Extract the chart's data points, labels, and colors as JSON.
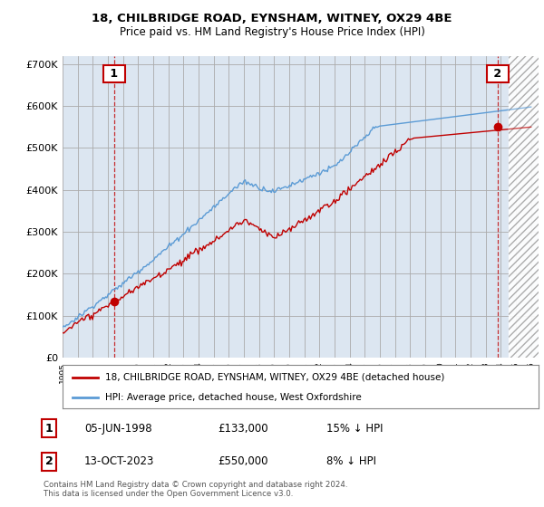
{
  "title_line1": "18, CHILBRIDGE ROAD, EYNSHAM, WITNEY, OX29 4BE",
  "title_line2": "Price paid vs. HM Land Registry's House Price Index (HPI)",
  "ylim": [
    0,
    720000
  ],
  "yticks": [
    0,
    100000,
    200000,
    300000,
    400000,
    500000,
    600000,
    700000
  ],
  "ytick_labels": [
    "£0",
    "£100K",
    "£200K",
    "£300K",
    "£400K",
    "£500K",
    "£600K",
    "£700K"
  ],
  "xlim_start": 1995,
  "xlim_end": 2026.5,
  "hpi_color": "#5b9bd5",
  "price_color": "#c00000",
  "bg_fill_color": "#dce6f1",
  "background_color": "#ffffff",
  "grid_color": "#aaaaaa",
  "hatch_start": 2024.5,
  "purchase1_x": 1998.43,
  "purchase1_y": 133000,
  "purchase2_x": 2023.79,
  "purchase2_y": 550000,
  "legend_line1": "18, CHILBRIDGE ROAD, EYNSHAM, WITNEY, OX29 4BE (detached house)",
  "legend_line2": "HPI: Average price, detached house, West Oxfordshire",
  "ann1_label": "1",
  "ann1_date": "05-JUN-1998",
  "ann1_price": "£133,000",
  "ann1_hpi": "15% ↓ HPI",
  "ann2_label": "2",
  "ann2_date": "13-OCT-2023",
  "ann2_price": "£550,000",
  "ann2_hpi": "8% ↓ HPI",
  "footer": "Contains HM Land Registry data © Crown copyright and database right 2024.\nThis data is licensed under the Open Government Licence v3.0.",
  "border_color": "#c00000"
}
